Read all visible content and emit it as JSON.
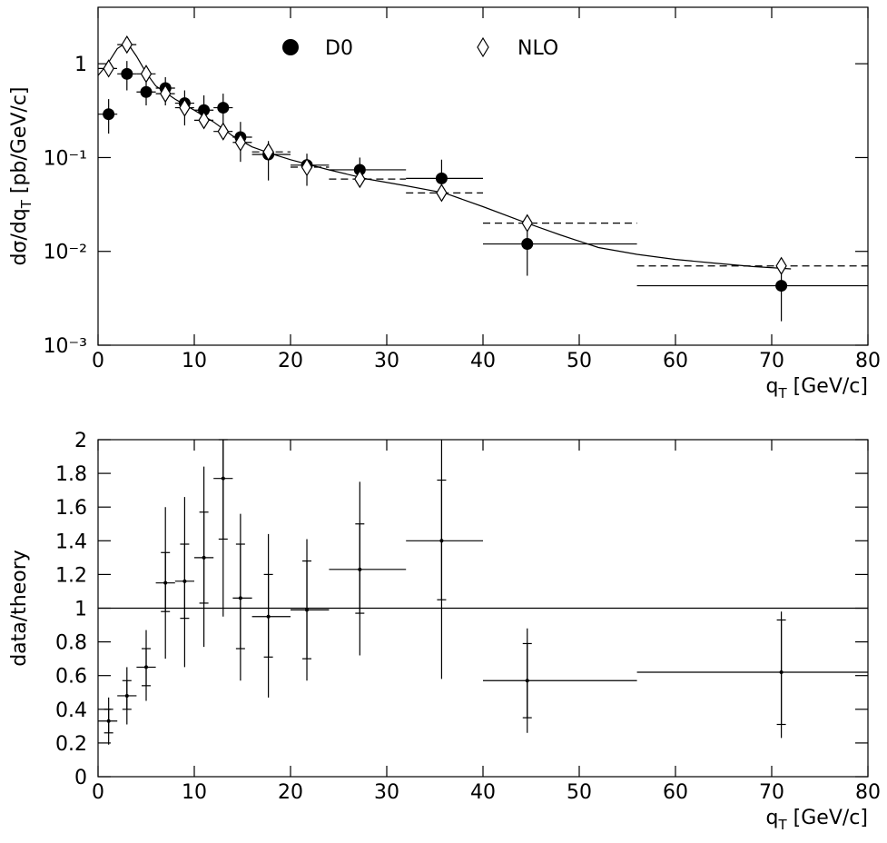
{
  "chart_data": [
    {
      "type": "scatter",
      "ylabel": [
        "dσ/dq",
        "T",
        " [pb/GeV/c]"
      ],
      "xlabel": [
        "q",
        "T",
        "  [GeV/c]"
      ],
      "ylog": true,
      "legend": "top",
      "xlim": [
        0,
        80
      ],
      "ylim": [
        0.001,
        4
      ],
      "xticks": [
        0,
        10,
        20,
        30,
        40,
        50,
        60,
        70,
        80
      ],
      "yticks": [
        {
          "value": 0.001,
          "label": "10⁻³"
        },
        {
          "value": 0.01,
          "label": "10⁻²"
        },
        {
          "value": 0.1,
          "label": "10⁻¹"
        },
        1
      ],
      "bins": [
        0,
        2,
        4,
        6,
        8,
        10,
        12,
        14,
        16,
        20,
        24,
        32,
        40,
        56,
        80
      ],
      "series": [
        {
          "name": "D0",
          "color": "#000000",
          "marker": "circle",
          "line": "solid",
          "x": [
            1.1,
            3,
            5,
            7,
            9,
            11,
            13,
            14.8,
            17.7,
            21.7,
            27.2,
            35.7,
            44.6,
            71
          ],
          "values": [
            0.29,
            0.78,
            0.5,
            0.55,
            0.38,
            0.32,
            0.34,
            0.165,
            0.108,
            0.083,
            0.074,
            0.06,
            0.012,
            0.0043
          ],
          "lower": [
            0.18,
            0.52,
            0.36,
            0.36,
            0.22,
            0.21,
            0.21,
            0.09,
            0.057,
            0.05,
            0.051,
            0.038,
            0.0055,
            0.0018
          ],
          "upper": [
            0.42,
            1.07,
            0.66,
            0.72,
            0.52,
            0.46,
            0.48,
            0.24,
            0.15,
            0.11,
            0.1,
            0.095,
            0.017,
            0.007
          ]
        },
        {
          "name": "NLO",
          "color": "#000000",
          "marker": "diamond",
          "line": "dashed",
          "x": [
            1.1,
            3,
            5,
            7,
            9,
            11,
            13,
            14.8,
            17.7,
            21.7,
            27.2,
            35.7,
            44.6,
            71
          ],
          "values": [
            0.89,
            1.6,
            0.78,
            0.48,
            0.34,
            0.25,
            0.19,
            0.145,
            0.115,
            0.079,
            0.059,
            0.042,
            0.02,
            0.007
          ]
        }
      ],
      "curve": {
        "x": [
          0,
          1,
          2,
          3,
          4,
          5,
          6,
          8,
          10,
          12,
          14,
          16,
          18,
          20,
          24,
          28,
          32,
          36,
          40,
          44,
          48,
          52,
          56,
          60,
          64,
          68,
          72
        ],
        "y": [
          0.75,
          1.0,
          1.45,
          1.7,
          1.2,
          0.8,
          0.58,
          0.42,
          0.32,
          0.24,
          0.17,
          0.13,
          0.11,
          0.095,
          0.074,
          0.059,
          0.05,
          0.042,
          0.03,
          0.021,
          0.015,
          0.011,
          0.0093,
          0.0082,
          0.0075,
          0.0069,
          0.0065
        ]
      }
    },
    {
      "type": "scatter",
      "ylabel": [
        "data/theory"
      ],
      "xlabel": [
        "q",
        "T",
        " [GeV/c]"
      ],
      "ylog": false,
      "xlim": [
        0,
        80
      ],
      "ylim": [
        0,
        2
      ],
      "xticks": [
        0,
        10,
        20,
        30,
        40,
        50,
        60,
        70,
        80
      ],
      "yticks": [
        0,
        0.2,
        0.4,
        0.6,
        0.8,
        1,
        1.2,
        1.4,
        1.6,
        1.8,
        2
      ],
      "reference": 1,
      "bins": [
        0,
        2,
        4,
        6,
        8,
        10,
        12,
        14,
        16,
        20,
        24,
        32,
        40,
        56,
        80
      ],
      "series": [
        {
          "color": "#000000",
          "marker": "dot",
          "x": [
            1.1,
            3,
            5,
            7,
            9,
            11,
            13,
            14.8,
            17.7,
            21.7,
            27.2,
            35.7,
            44.6,
            71
          ],
          "values": [
            0.33,
            0.48,
            0.65,
            1.15,
            1.16,
            1.3,
            1.77,
            1.06,
            0.95,
            0.99,
            1.23,
            1.4,
            0.57,
            0.62
          ],
          "inner_lower": [
            0.26,
            0.4,
            0.54,
            0.98,
            0.94,
            1.03,
            1.41,
            0.76,
            0.71,
            0.7,
            0.97,
            1.05,
            0.35,
            0.31
          ],
          "inner_upper": [
            0.4,
            0.57,
            0.76,
            1.33,
            1.38,
            1.57,
            2,
            1.38,
            1.2,
            1.28,
            1.5,
            1.76,
            0.79,
            0.93
          ],
          "outer_lower": [
            0.19,
            0.31,
            0.45,
            0.7,
            0.65,
            0.77,
            0.95,
            0.57,
            0.47,
            0.57,
            0.72,
            0.58,
            0.26,
            0.23
          ],
          "outer_upper": [
            0.47,
            0.65,
            0.87,
            1.6,
            1.66,
            1.84,
            2,
            1.56,
            1.44,
            1.41,
            1.75,
            2,
            0.88,
            0.98
          ]
        }
      ]
    }
  ]
}
